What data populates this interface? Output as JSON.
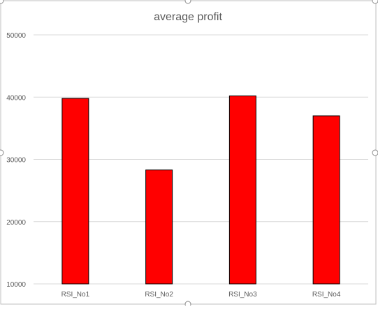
{
  "chart_data": {
    "type": "bar",
    "title": "average profit",
    "xlabel": "",
    "ylabel": "",
    "categories": [
      "RSI_No1",
      "RSI_No2",
      "RSI_No3",
      "RSI_No4"
    ],
    "series": [
      {
        "values": [
          39800,
          28300,
          40200,
          37000
        ]
      }
    ],
    "ylim": [
      10000,
      50000
    ],
    "yticks": [
      10000,
      20000,
      30000,
      40000,
      50000
    ],
    "ytick_labels": [
      "10000",
      "20000",
      "30000",
      "40000",
      "50000"
    ],
    "grid": true,
    "legend": "none",
    "bar_color": "#ff0000",
    "bar_edge_color": "#000000",
    "gridline_color": "#d9d9d9",
    "text_color": "#595959"
  }
}
